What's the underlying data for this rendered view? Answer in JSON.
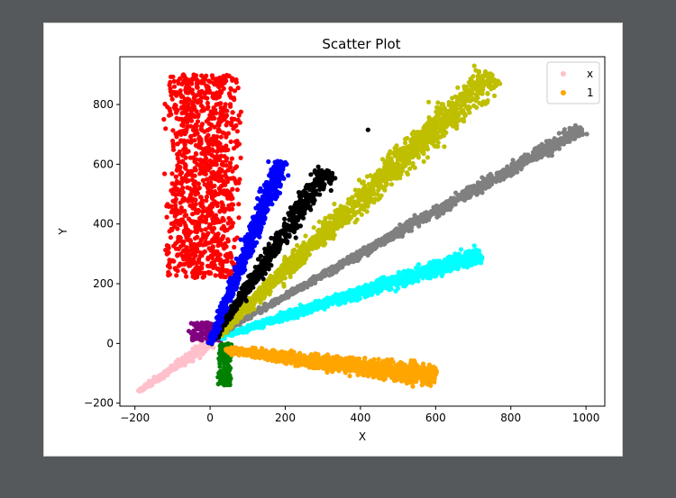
{
  "chart_data": {
    "type": "scatter",
    "title": "Scatter Plot",
    "xlabel": "X",
    "ylabel": "Y",
    "xlim": [
      -240,
      1050
    ],
    "ylim": [
      -210,
      960
    ],
    "xticks": [
      -200,
      0,
      200,
      400,
      600,
      800,
      1000
    ],
    "yticks": [
      -200,
      0,
      200,
      400,
      600,
      800
    ],
    "grid": false,
    "legend_placement": "top-right",
    "legend": [
      {
        "label": "x",
        "color": "#ffc0cb"
      },
      {
        "label": "1",
        "color": "#ffa500"
      }
    ],
    "series": [
      {
        "color": "#ff0000",
        "cx": -20,
        "cy": 560,
        "dx": 110,
        "dy": 340,
        "count": 1100
      },
      {
        "color": "#ffc0cb",
        "from": [
          -190,
          -160
        ],
        "to": [
          0,
          0
        ],
        "spread": 10,
        "count": 300
      },
      {
        "color": "#800080",
        "cx": -10,
        "cy": 40,
        "dx": 50,
        "dy": 30,
        "count": 120
      },
      {
        "color": "#008000",
        "cx": 40,
        "cy": -70,
        "dx": 20,
        "dy": 70,
        "count": 150
      },
      {
        "color": "#ffa500",
        "from": [
          40,
          -20
        ],
        "to": [
          600,
          -110
        ],
        "spread": 22,
        "count": 1500
      },
      {
        "color": "#00ffff",
        "from": [
          20,
          20
        ],
        "to": [
          720,
          300
        ],
        "spread": 16,
        "count": 1300
      },
      {
        "color": "#808080",
        "from": [
          20,
          30
        ],
        "to": [
          990,
          720
        ],
        "spread": 12,
        "count": 1400
      },
      {
        "color": "#bfbf00",
        "from": [
          20,
          30
        ],
        "to": [
          750,
          900
        ],
        "spread": 28,
        "count": 1500
      },
      {
        "color": "#000000",
        "from": [
          0,
          0
        ],
        "to": [
          310,
          580
        ],
        "spread": 18,
        "count": 600
      },
      {
        "color": "#0000ff",
        "from": [
          0,
          0
        ],
        "to": [
          190,
          610
        ],
        "spread": 14,
        "count": 800
      }
    ],
    "outliers": [
      {
        "x": 420,
        "y": 715,
        "color": "#000000"
      }
    ]
  }
}
